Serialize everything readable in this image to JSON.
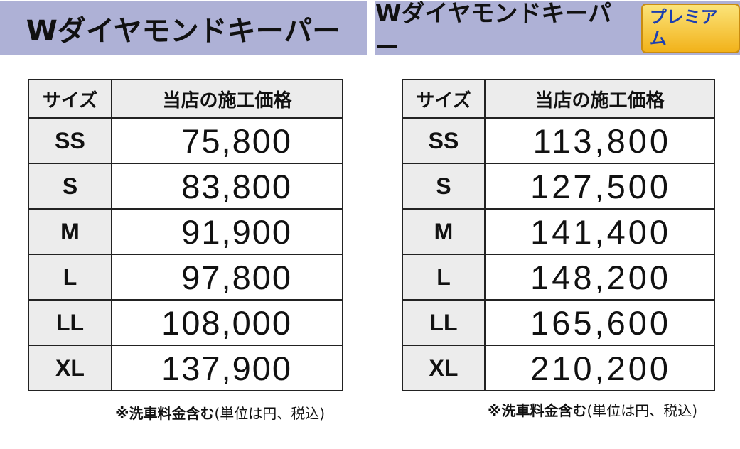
{
  "left": {
    "title": "Wダイヤモンドキーパー",
    "col_size": "サイズ",
    "col_price": "当店の施工価格",
    "rows": [
      {
        "size": "SS",
        "price": "75,800"
      },
      {
        "size": "S",
        "price": "83,800"
      },
      {
        "size": "M",
        "price": "91,900"
      },
      {
        "size": "L",
        "price": "97,800"
      },
      {
        "size": "LL",
        "price": "108,000"
      },
      {
        "size": "XL",
        "price": "137,900"
      }
    ],
    "note_bold": "※洗車料金含む",
    "note_rest": "(単位は円、税込)"
  },
  "right": {
    "title": "Wダイヤモンドキーパー",
    "badge": "プレミアム",
    "col_size": "サイズ",
    "col_price": "当店の施工価格",
    "rows": [
      {
        "size": "SS",
        "price": "113,800"
      },
      {
        "size": "S",
        "price": "127,500"
      },
      {
        "size": "M",
        "price": "141,400"
      },
      {
        "size": "L",
        "price": "148,200"
      },
      {
        "size": "LL",
        "price": "165,600"
      },
      {
        "size": "XL",
        "price": "210,200"
      }
    ],
    "note_bold": "※洗車料金含む",
    "note_rest": "(単位は円、税込)"
  },
  "colors": {
    "header_bg": "#aeb1d6",
    "cell_gray": "#ececec",
    "badge_text": "#1d3fb0",
    "badge_bg": "#f2b21a"
  }
}
